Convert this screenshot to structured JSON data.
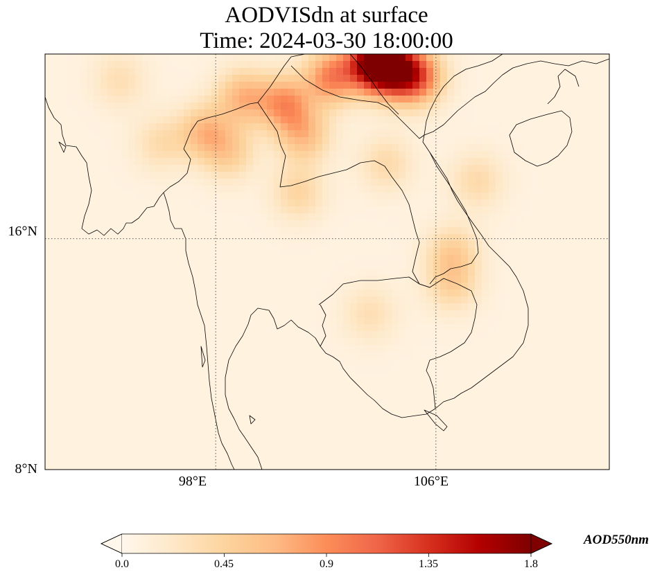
{
  "figure": {
    "title_line1": "AODVISdn at surface",
    "title_line2": "Time: 2024-03-30 18:00:00"
  },
  "map": {
    "extent": {
      "lon_min": 91.8,
      "lon_max": 112.3,
      "lat_min": 8,
      "lat_max": 22.4
    },
    "gridlines": {
      "lats": [
        16,
        8
      ],
      "lons": [
        98,
        106
      ],
      "style": "dotted"
    },
    "lat_labels": [
      "16°N",
      "8°N"
    ],
    "lon_labels": [
      "98°E",
      "106°E"
    ],
    "background_value": 0.08,
    "hotspots": [
      {
        "lon": 103.7,
        "lat": 22.1,
        "value": 1.45
      },
      {
        "lon": 104.4,
        "lat": 21.9,
        "value": 1.2
      },
      {
        "lon": 105.3,
        "lat": 21.6,
        "value": 1.0
      },
      {
        "lon": 102.2,
        "lat": 21.6,
        "value": 0.85
      },
      {
        "lon": 100.5,
        "lat": 20.7,
        "value": 0.75
      },
      {
        "lon": 99.0,
        "lat": 20.9,
        "value": 0.6
      },
      {
        "lon": 97.6,
        "lat": 19.7,
        "value": 0.55
      },
      {
        "lon": 101.2,
        "lat": 19.6,
        "value": 0.55
      },
      {
        "lon": 101.0,
        "lat": 17.6,
        "value": 0.35
      },
      {
        "lon": 104.2,
        "lat": 18.6,
        "value": 0.3
      },
      {
        "lon": 107.5,
        "lat": 18.0,
        "value": 0.3
      },
      {
        "lon": 106.6,
        "lat": 15.5,
        "value": 0.4
      },
      {
        "lon": 106.6,
        "lat": 14.4,
        "value": 0.35
      },
      {
        "lon": 98.5,
        "lat": 19.0,
        "value": 0.4
      },
      {
        "lon": 103.6,
        "lat": 13.4,
        "value": 0.25
      },
      {
        "lon": 94.5,
        "lat": 21.5,
        "value": 0.25
      },
      {
        "lon": 96.0,
        "lat": 19.3,
        "value": 0.28
      }
    ]
  },
  "colorbar": {
    "label": "AOD550nm",
    "min": 0.0,
    "max": 1.8,
    "ticks": [
      "0.0",
      "0.45",
      "0.9",
      "1.35",
      "1.8"
    ],
    "tick_values": [
      0.0,
      0.45,
      0.9,
      1.35,
      1.8
    ],
    "colormap": [
      "#fff5eb",
      "#fee6ce",
      "#fdd0a2",
      "#fdae6b",
      "#fd8d3c",
      "#f16913",
      "#d94801",
      "#a63603",
      "#7f2704"
    ],
    "colormap_name": "OrRd",
    "colormap_stops": [
      "#fff7ec",
      "#fee8c8",
      "#fdd49e",
      "#fdbb84",
      "#fc8d59",
      "#ef6548",
      "#d7301f",
      "#b30000",
      "#7f0000"
    ],
    "extend": "both"
  }
}
